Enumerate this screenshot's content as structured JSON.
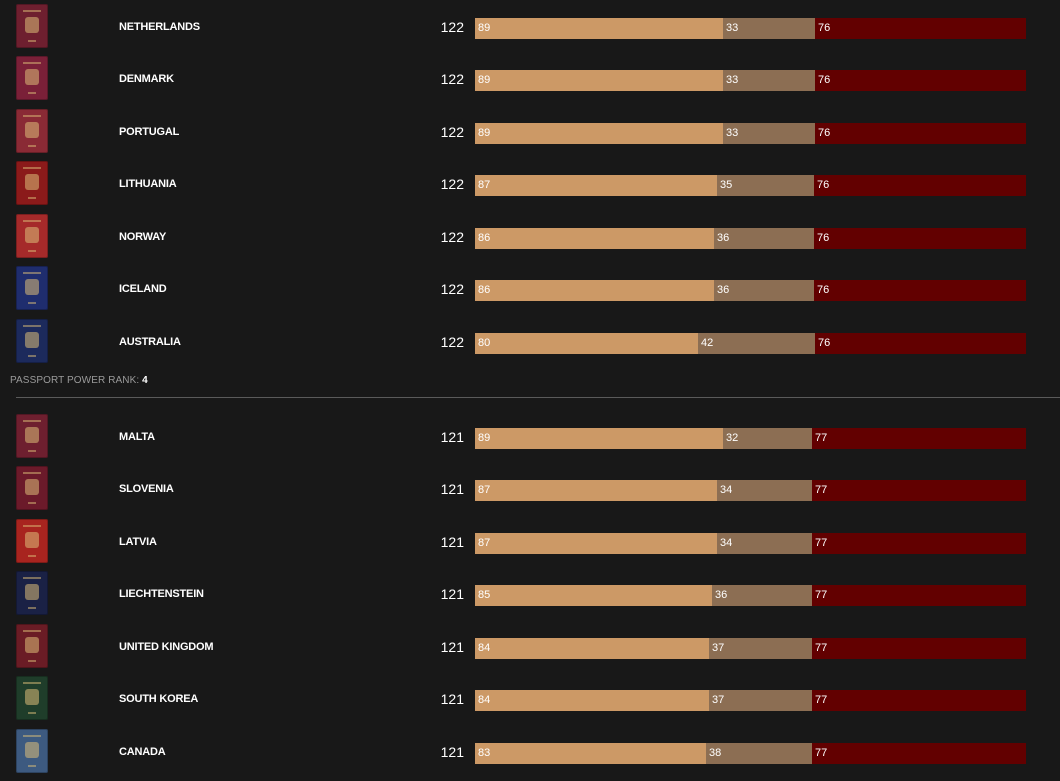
{
  "groups": [
    {
      "rank_label": "",
      "rank_value": "",
      "countries": [
        {
          "name": "NETHERLANDS",
          "score": "122",
          "visa_free": 89,
          "visa_on_arrival": 33,
          "visa_required": 76,
          "cover_color": "#6e1f2f"
        },
        {
          "name": "DENMARK",
          "score": "122",
          "visa_free": 89,
          "visa_on_arrival": 33,
          "visa_required": 76,
          "cover_color": "#7a2038"
        },
        {
          "name": "PORTUGAL",
          "score": "122",
          "visa_free": 89,
          "visa_on_arrival": 33,
          "visa_required": 76,
          "cover_color": "#8a2a35"
        },
        {
          "name": "LITHUANIA",
          "score": "122",
          "visa_free": 87,
          "visa_on_arrival": 35,
          "visa_required": 76,
          "cover_color": "#8b1a1a"
        },
        {
          "name": "NORWAY",
          "score": "122",
          "visa_free": 86,
          "visa_on_arrival": 36,
          "visa_required": 76,
          "cover_color": "#a52a2a"
        },
        {
          "name": "ICELAND",
          "score": "122",
          "visa_free": 86,
          "visa_on_arrival": 36,
          "visa_required": 76,
          "cover_color": "#1f2d6e"
        },
        {
          "name": "AUSTRALIA",
          "score": "122",
          "visa_free": 80,
          "visa_on_arrival": 42,
          "visa_required": 76,
          "cover_color": "#1c2a5c"
        }
      ]
    },
    {
      "rank_label": "PASSPORT POWER RANK: ",
      "rank_value": "4",
      "countries": [
        {
          "name": "MALTA",
          "score": "121",
          "visa_free": 89,
          "visa_on_arrival": 32,
          "visa_required": 77,
          "cover_color": "#6e1f2f"
        },
        {
          "name": "SLOVENIA",
          "score": "121",
          "visa_free": 87,
          "visa_on_arrival": 34,
          "visa_required": 77,
          "cover_color": "#6b1a2a"
        },
        {
          "name": "LATVIA",
          "score": "121",
          "visa_free": 87,
          "visa_on_arrival": 34,
          "visa_required": 77,
          "cover_color": "#a8241f"
        },
        {
          "name": "LIECHTENSTEIN",
          "score": "121",
          "visa_free": 85,
          "visa_on_arrival": 36,
          "visa_required": 77,
          "cover_color": "#1a2145"
        },
        {
          "name": "UNITED KINGDOM",
          "score": "121",
          "visa_free": 84,
          "visa_on_arrival": 37,
          "visa_required": 77,
          "cover_color": "#6a1c25"
        },
        {
          "name": "SOUTH KOREA",
          "score": "121",
          "visa_free": 84,
          "visa_on_arrival": 37,
          "visa_required": 77,
          "cover_color": "#1f3d2a"
        },
        {
          "name": "CANADA",
          "score": "121",
          "visa_free": 83,
          "visa_on_arrival": 38,
          "visa_required": 77,
          "cover_color": "#3d5a80"
        }
      ]
    }
  ],
  "colors": {
    "visa_free": "#cc9966",
    "visa_on_arrival": "#8c6e53",
    "visa_required": "#620000",
    "background": "#181818"
  }
}
